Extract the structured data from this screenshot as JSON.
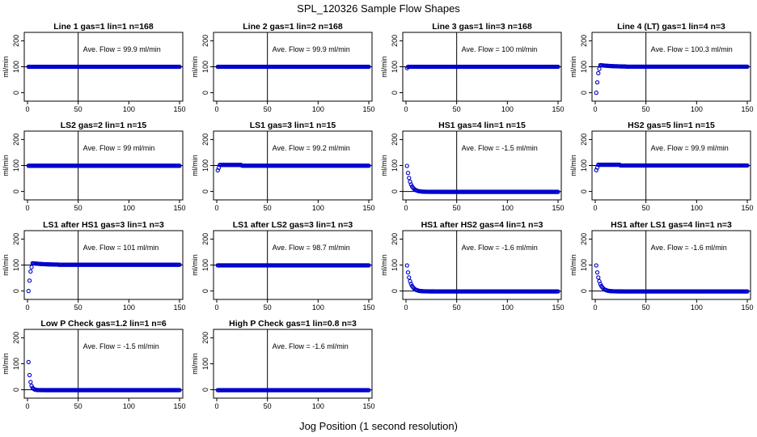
{
  "figure": {
    "title": "SPL_120326  Sample Flow Shapes",
    "xlabel": "Jog Position (1 second resolution)"
  },
  "chart_data": [
    {
      "type": "scatter",
      "title": "Line 1 gas=1 lin=1 n=168",
      "ylabel": "ml/min",
      "annotation": "Ave. Flow =  99.9  ml/min",
      "shape": "flat",
      "level": 99.9,
      "xlim": [
        0,
        150
      ],
      "ylim": [
        -20,
        220
      ],
      "xticks": [
        0,
        50,
        100,
        150
      ],
      "yticks": [
        0,
        100,
        200
      ],
      "hline": 100,
      "vline": 50
    },
    {
      "type": "scatter",
      "title": "Line 2 gas=1 lin=2 n=168",
      "ylabel": "ml/min",
      "annotation": "Ave. Flow =  99.9  ml/min",
      "shape": "flat",
      "level": 99.9,
      "xlim": [
        0,
        150
      ],
      "ylim": [
        -20,
        220
      ],
      "xticks": [
        0,
        50,
        100,
        150
      ],
      "yticks": [
        0,
        100,
        200
      ],
      "hline": 100,
      "vline": 50
    },
    {
      "type": "scatter",
      "title": "Line 3 gas=1 lin=3 n=168",
      "ylabel": "ml/min",
      "annotation": "Ave. Flow =  100  ml/min",
      "shape": "flat_dip",
      "level": 100,
      "xlim": [
        0,
        150
      ],
      "ylim": [
        -20,
        220
      ],
      "xticks": [
        0,
        50,
        100,
        150
      ],
      "yticks": [
        0,
        100,
        200
      ],
      "hline": 100,
      "vline": 50
    },
    {
      "type": "scatter",
      "title": "Line 4 (LT) gas=1 lin=4 n=3",
      "ylabel": "ml/min",
      "annotation": "Ave. Flow =  100.3  ml/min",
      "shape": "rise_overshoot",
      "level": 100.3,
      "xlim": [
        0,
        150
      ],
      "ylim": [
        -20,
        220
      ],
      "xticks": [
        0,
        50,
        100,
        150
      ],
      "yticks": [
        0,
        100,
        200
      ],
      "hline": 100,
      "vline": 50
    },
    {
      "type": "scatter",
      "title": "LS2 gas=2 lin=1 n=15",
      "ylabel": "ml/min",
      "annotation": "Ave. Flow =  99  ml/min",
      "shape": "flat",
      "level": 99,
      "xlim": [
        0,
        150
      ],
      "ylim": [
        -20,
        220
      ],
      "xticks": [
        0,
        50,
        100,
        150
      ],
      "yticks": [
        0,
        100,
        200
      ],
      "hline": 100,
      "vline": 50
    },
    {
      "type": "scatter",
      "title": "LS1 gas=3 lin=1 n=15",
      "ylabel": "ml/min",
      "annotation": "Ave. Flow =  99.2  ml/min",
      "shape": "rise_small",
      "level": 99.2,
      "xlim": [
        0,
        150
      ],
      "ylim": [
        -20,
        220
      ],
      "xticks": [
        0,
        50,
        100,
        150
      ],
      "yticks": [
        0,
        100,
        200
      ],
      "hline": 100,
      "vline": 50
    },
    {
      "type": "scatter",
      "title": "HS1 gas=4 lin=1 n=15",
      "ylabel": "ml/min",
      "annotation": "Ave. Flow =  -1.5  ml/min",
      "shape": "decay",
      "level": -1.5,
      "xlim": [
        0,
        150
      ],
      "ylim": [
        -20,
        220
      ],
      "xticks": [
        0,
        50,
        100,
        150
      ],
      "yticks": [
        0,
        100,
        200
      ],
      "hline": 0,
      "vline": 50
    },
    {
      "type": "scatter",
      "title": "HS2 gas=5 lin=1 n=15",
      "ylabel": "ml/min",
      "annotation": "Ave. Flow =  99.9  ml/min",
      "shape": "rise_small",
      "level": 99.9,
      "xlim": [
        0,
        150
      ],
      "ylim": [
        -20,
        220
      ],
      "xticks": [
        0,
        50,
        100,
        150
      ],
      "yticks": [
        0,
        100,
        200
      ],
      "hline": 100,
      "vline": 50
    },
    {
      "type": "scatter",
      "title": "LS1 after HS1 gas=3 lin=1 n=3",
      "ylabel": "ml/min",
      "annotation": "Ave. Flow =  101  ml/min",
      "shape": "rise_overshoot",
      "level": 101,
      "xlim": [
        0,
        150
      ],
      "ylim": [
        -20,
        220
      ],
      "xticks": [
        0,
        50,
        100,
        150
      ],
      "yticks": [
        0,
        100,
        200
      ],
      "hline": 100,
      "vline": 50
    },
    {
      "type": "scatter",
      "title": "LS1 after LS2 gas=3 lin=1 n=3",
      "ylabel": "ml/min",
      "annotation": "Ave. Flow =  98.7  ml/min",
      "shape": "flat",
      "level": 98.7,
      "xlim": [
        0,
        150
      ],
      "ylim": [
        -20,
        220
      ],
      "xticks": [
        0,
        50,
        100,
        150
      ],
      "yticks": [
        0,
        100,
        200
      ],
      "hline": 100,
      "vline": 50
    },
    {
      "type": "scatter",
      "title": "HS1 after HS2 gas=4 lin=1 n=3",
      "ylabel": "ml/min",
      "annotation": "Ave. Flow =  -1.6  ml/min",
      "shape": "decay",
      "level": -1.6,
      "xlim": [
        0,
        150
      ],
      "ylim": [
        -20,
        220
      ],
      "xticks": [
        0,
        50,
        100,
        150
      ],
      "yticks": [
        0,
        100,
        200
      ],
      "hline": 0,
      "vline": 50
    },
    {
      "type": "scatter",
      "title": "HS1 after LS1 gas=4 lin=1 n=3",
      "ylabel": "ml/min",
      "annotation": "Ave. Flow =  -1.6  ml/min",
      "shape": "decay",
      "level": -1.6,
      "xlim": [
        0,
        150
      ],
      "ylim": [
        -20,
        220
      ],
      "xticks": [
        0,
        50,
        100,
        150
      ],
      "yticks": [
        0,
        100,
        200
      ],
      "hline": 0,
      "vline": 50
    },
    {
      "type": "scatter",
      "title": "Low P Check gas=1.2 lin=1 n=6",
      "ylabel": "ml/min",
      "annotation": "Ave. Flow =  -1.5  ml/min",
      "shape": "decay_fast",
      "level": -1.5,
      "xlim": [
        0,
        150
      ],
      "ylim": [
        -20,
        220
      ],
      "xticks": [
        0,
        50,
        100,
        150
      ],
      "yticks": [
        0,
        100,
        200
      ],
      "hline": 0,
      "vline": 50
    },
    {
      "type": "scatter",
      "title": "High P Check gas=1 lin=0.8 n=3",
      "ylabel": "ml/min",
      "annotation": "Ave. Flow =  -1.6  ml/min",
      "shape": "flat",
      "level": -1.6,
      "xlim": [
        0,
        150
      ],
      "ylim": [
        -20,
        220
      ],
      "xticks": [
        0,
        50,
        100,
        150
      ],
      "yticks": [
        0,
        100,
        200
      ],
      "hline": 0,
      "vline": 50
    }
  ],
  "colors": {
    "points": "#0000cc",
    "axes": "#000000"
  }
}
